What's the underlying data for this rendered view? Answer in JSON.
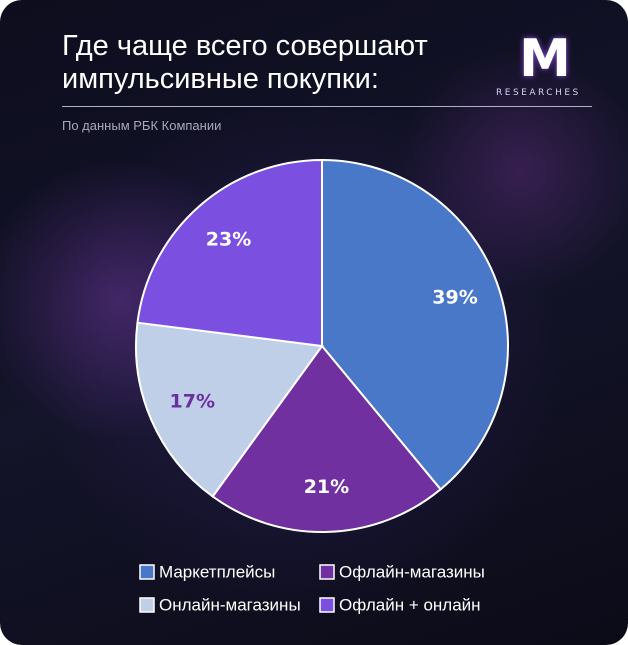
{
  "logo": {
    "mark": "M",
    "text": "RESEARCHES"
  },
  "chart_data": {
    "type": "pie",
    "title": "Где чаще всего совершают импульсивные покупки:",
    "subtitle": "По данным РБК Компании",
    "categories": [
      "Маркетплейсы",
      "Офлайн-магазины",
      "Онлайн-магазины",
      "Офлайн + онлайн"
    ],
    "values": [
      39,
      21,
      17,
      23
    ],
    "value_labels": [
      "39%",
      "21%",
      "17%",
      "23%"
    ],
    "colors": [
      "#4a78c8",
      "#7030a0",
      "#c0cfe8",
      "#7b4fe0"
    ]
  }
}
